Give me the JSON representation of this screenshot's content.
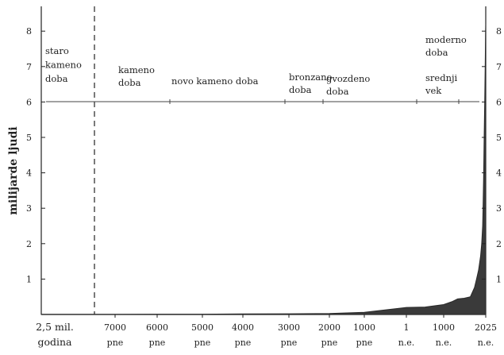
{
  "chart_data": {
    "type": "area",
    "ylabel": "milijarde ljudi",
    "ylim": [
      0,
      8.5
    ],
    "yticks": [
      "1",
      "2",
      "3",
      "4",
      "5",
      "6",
      "7",
      "8"
    ],
    "x_labels": [
      [
        "2,5 mil.",
        "godina"
      ],
      [
        "7000",
        "pne"
      ],
      [
        "6000",
        "pne"
      ],
      [
        "5000",
        "pne"
      ],
      [
        "4000",
        "pne"
      ],
      [
        "3000",
        "pne"
      ],
      [
        "2000",
        "pne"
      ],
      [
        "1000",
        "pne"
      ],
      [
        "1",
        "n.e."
      ],
      [
        "1000",
        "n.e."
      ],
      [
        "2025",
        "n.e."
      ]
    ],
    "eras": [
      {
        "label": [
          "staro",
          "kameno",
          "doba"
        ]
      },
      {
        "label": [
          "kameno",
          "doba"
        ]
      },
      {
        "label": [
          "novo kameno doba"
        ]
      },
      {
        "label": [
          "bronzano",
          "doba"
        ]
      },
      {
        "label": [
          "gvozdeno",
          "doba"
        ]
      },
      {
        "label": [
          "srednji",
          "vek"
        ]
      },
      {
        "label": [
          "moderno",
          "doba"
        ]
      }
    ],
    "series": [
      {
        "x": [
          -10000,
          -8000,
          -7000,
          -6000,
          -5000,
          -4000,
          -3000,
          -2000,
          -1000,
          1,
          500,
          1000,
          1200,
          1340,
          1500,
          1650,
          1750,
          1800,
          1850,
          1900,
          1927,
          1950,
          1960,
          1974,
          1987,
          1999,
          2011,
          2022,
          2025
        ],
        "values": [
          0.004,
          0.005,
          0.006,
          0.008,
          0.01,
          0.015,
          0.02,
          0.03,
          0.06,
          0.2,
          0.21,
          0.28,
          0.36,
          0.44,
          0.46,
          0.5,
          0.76,
          1.0,
          1.26,
          1.65,
          2.0,
          2.5,
          3.0,
          4.0,
          5.0,
          6.0,
          7.0,
          8.0,
          8.2
        ]
      }
    ],
    "grid": false,
    "legend": "none"
  }
}
